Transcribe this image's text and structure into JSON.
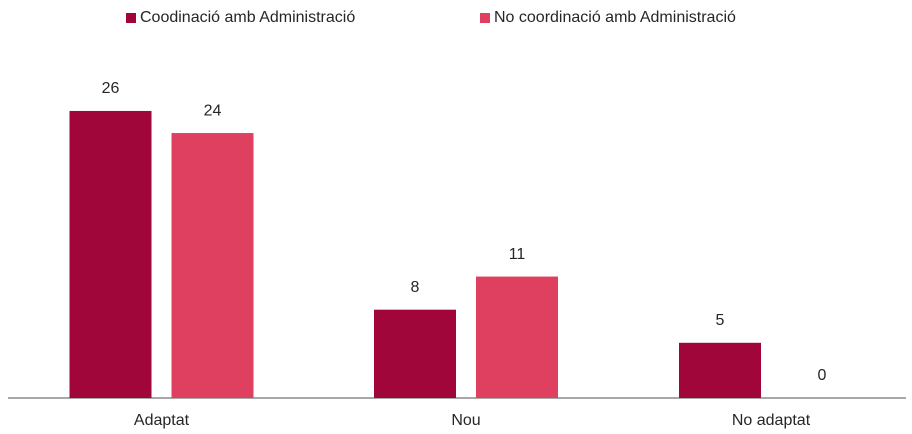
{
  "chart_data": {
    "type": "bar",
    "categories": [
      "Adaptat",
      "Nou",
      "No adaptat"
    ],
    "series": [
      {
        "name": "Coodinació amb Administració",
        "color": "#a1063a",
        "values": [
          26,
          8,
          5
        ]
      },
      {
        "name": "No coordinació amb Administració",
        "color": "#e04060",
        "values": [
          24,
          11,
          0
        ]
      }
    ],
    "legend": "top"
  }
}
